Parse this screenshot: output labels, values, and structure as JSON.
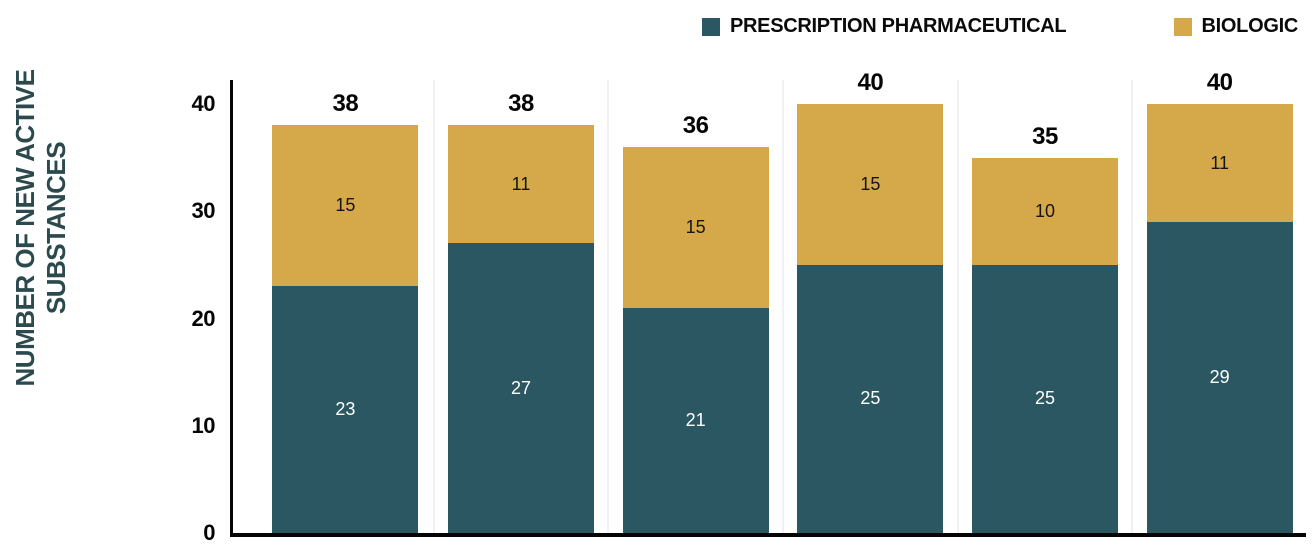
{
  "chart_data": {
    "type": "bar",
    "stacked": true,
    "categories": [
      "",
      "",
      "",
      "",
      "",
      ""
    ],
    "series": [
      {
        "name": "PRESCRIPTION PHARMACEUTICAL",
        "color": "#2A5761",
        "label_color": "#FFFFFF",
        "values": [
          23,
          27,
          21,
          25,
          25,
          29
        ]
      },
      {
        "name": "BIOLOGIC",
        "color": "#D5A94A",
        "label_color": "#141414",
        "values": [
          15,
          11,
          15,
          15,
          10,
          11
        ]
      }
    ],
    "totals": [
      38,
      38,
      36,
      40,
      35,
      40
    ],
    "title": "",
    "xlabel": "",
    "ylabel": "NUMBER OF NEW ACTIVE SUBSTANCES",
    "ylabel_lines": [
      "NUMBER OF NEW ACTIVE",
      "SUBSTANCES"
    ],
    "yticks": [
      0,
      10,
      20,
      30,
      40
    ],
    "ylim": [
      0,
      40
    ],
    "legend_position": "top-right",
    "grid": "vertical-column-separators"
  },
  "legend": {
    "items": [
      {
        "label": "PRESCRIPTION PHARMACEUTICAL",
        "color": "#2A5761"
      },
      {
        "label": "BIOLOGIC",
        "color": "#D5A94A"
      }
    ]
  },
  "colors": {
    "prescription_teal": "#2A5761",
    "biologic_gold": "#D5A94A",
    "axis": "#050505",
    "y_axis_title": "#2C4A4E",
    "column_separator": "#F1F1F1"
  }
}
